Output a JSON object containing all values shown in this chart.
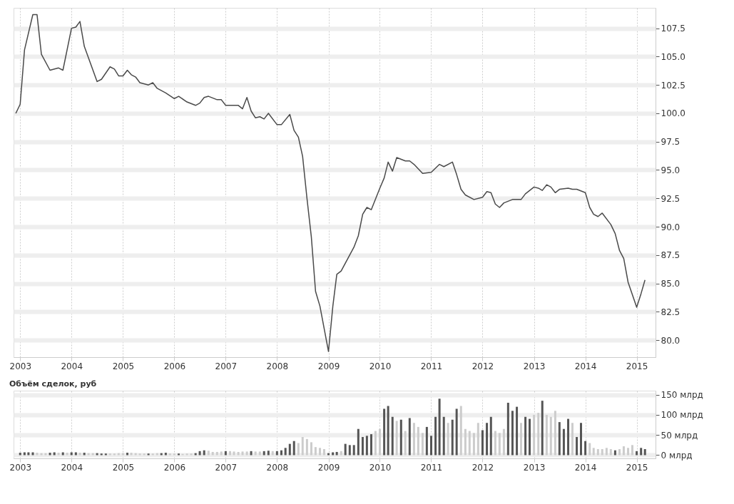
{
  "chart_data": [
    {
      "type": "line",
      "grid": true,
      "line_style": "solid",
      "marker": "none",
      "x": [
        "2002-12",
        "2003-01",
        "2003-02",
        "2003-04",
        "2003-05",
        "2003-06",
        "2003-08",
        "2003-10",
        "2003-11",
        "2004-01",
        "2004-02",
        "2004-03",
        "2004-04",
        "2004-07",
        "2004-08",
        "2004-10",
        "2004-11",
        "2004-12",
        "2005-01",
        "2005-02",
        "2005-03",
        "2005-04",
        "2005-05",
        "2005-07",
        "2005-08",
        "2005-09",
        "2005-11",
        "2006-01",
        "2006-02",
        "2006-04",
        "2006-06",
        "2006-07",
        "2006-08",
        "2006-09",
        "2006-11",
        "2006-12",
        "2007-01",
        "2007-04",
        "2007-05",
        "2007-06",
        "2007-07",
        "2007-08",
        "2007-09",
        "2007-10",
        "2007-11",
        "2008-01",
        "2008-02",
        "2008-04",
        "2008-05",
        "2008-06",
        "2008-07",
        "2008-08",
        "2008-09",
        "2008-10",
        "2008-11",
        "2009-01",
        "2009-02",
        "2009-03",
        "2009-04",
        "2009-07",
        "2009-08",
        "2009-09",
        "2009-10",
        "2009-11",
        "2010-01",
        "2010-02",
        "2010-03",
        "2010-04",
        "2010-05",
        "2010-07",
        "2010-08",
        "2010-09",
        "2010-11",
        "2011-01",
        "2011-03",
        "2011-04",
        "2011-06",
        "2011-07",
        "2011-08",
        "2011-09",
        "2011-11",
        "2012-01",
        "2012-02",
        "2012-03",
        "2012-04",
        "2012-05",
        "2012-06",
        "2012-08",
        "2012-10",
        "2012-11",
        "2013-01",
        "2013-02",
        "2013-03",
        "2013-04",
        "2013-05",
        "2013-06",
        "2013-07",
        "2013-09",
        "2013-10",
        "2013-11",
        "2014-01",
        "2014-02",
        "2014-03",
        "2014-04",
        "2014-05",
        "2014-07",
        "2014-08",
        "2014-09",
        "2014-10",
        "2014-11",
        "2015-01",
        "2015-02",
        "2015-03"
      ],
      "series": [
        {
          "color": "#4a4a4a",
          "values": [
            100.0,
            100.8,
            105.6,
            108.7,
            108.7,
            105.2,
            103.8,
            104.0,
            103.8,
            107.5,
            107.6,
            108.1,
            105.9,
            102.8,
            103.0,
            104.1,
            103.9,
            103.3,
            103.3,
            103.8,
            103.4,
            103.2,
            102.7,
            102.5,
            102.7,
            102.2,
            101.8,
            101.3,
            101.5,
            101.0,
            100.7,
            100.9,
            101.4,
            101.5,
            101.2,
            101.2,
            100.7,
            100.7,
            100.4,
            101.4,
            100.2,
            99.6,
            99.7,
            99.5,
            100.0,
            99.0,
            99.0,
            99.9,
            98.5,
            97.9,
            96.2,
            92.5,
            89.1,
            84.3,
            83.0,
            79.0,
            83.0,
            85.8,
            86.1,
            88.2,
            89.2,
            91.1,
            91.7,
            91.5,
            93.4,
            94.3,
            95.7,
            94.9,
            96.1,
            95.8,
            95.8,
            95.5,
            94.7,
            94.8,
            95.5,
            95.3,
            95.7,
            94.6,
            93.3,
            92.8,
            92.4,
            92.6,
            93.1,
            93.0,
            92.0,
            91.7,
            92.1,
            92.4,
            92.4,
            92.9,
            93.5,
            93.4,
            93.2,
            93.7,
            93.5,
            93.0,
            93.3,
            93.4,
            93.3,
            93.3,
            93.0,
            91.7,
            91.1,
            90.9,
            91.2,
            90.2,
            89.4,
            87.9,
            87.2,
            85.1,
            82.9,
            84.1,
            85.3
          ]
        }
      ],
      "xlim": [
        "2002-11-15",
        "2015-05-15"
      ],
      "xticks": [
        "2003",
        "2004",
        "2005",
        "2006",
        "2007",
        "2008",
        "2009",
        "2010",
        "2011",
        "2012",
        "2013",
        "2014",
        "2015"
      ],
      "ylim": [
        78.5,
        109.3
      ],
      "yticks": [
        {
          "value": 80,
          "label": "80.0"
        },
        {
          "value": 82.5,
          "label": "82.5"
        },
        {
          "value": 85,
          "label": "85.0"
        },
        {
          "value": 87.5,
          "label": "87.5"
        },
        {
          "value": 90,
          "label": "90.0"
        },
        {
          "value": 92.5,
          "label": "92.5"
        },
        {
          "value": 95,
          "label": "95.0"
        },
        {
          "value": 97.5,
          "label": "97.5"
        },
        {
          "value": 100,
          "label": "100.0"
        },
        {
          "value": 102.5,
          "label": "102.5"
        },
        {
          "value": 105,
          "label": "105.0"
        },
        {
          "value": 107.5,
          "label": "107.5"
        }
      ]
    },
    {
      "type": "bar",
      "title": "Объём сделок, руб",
      "grid": true,
      "x": [
        "2003-01",
        "2003-02",
        "2003-03",
        "2003-04",
        "2003-05",
        "2003-06",
        "2003-07",
        "2003-08",
        "2003-09",
        "2003-10",
        "2003-11",
        "2003-12",
        "2004-01",
        "2004-02",
        "2004-03",
        "2004-04",
        "2004-05",
        "2004-06",
        "2004-07",
        "2004-08",
        "2004-09",
        "2004-10",
        "2004-11",
        "2004-12",
        "2005-01",
        "2005-02",
        "2005-03",
        "2005-04",
        "2005-05",
        "2005-06",
        "2005-07",
        "2005-08",
        "2005-09",
        "2005-10",
        "2005-11",
        "2005-12",
        "2006-01",
        "2006-02",
        "2006-03",
        "2006-04",
        "2006-05",
        "2006-06",
        "2006-07",
        "2006-08",
        "2006-09",
        "2006-10",
        "2006-11",
        "2006-12",
        "2007-01",
        "2007-02",
        "2007-03",
        "2007-04",
        "2007-05",
        "2007-06",
        "2007-07",
        "2007-08",
        "2007-09",
        "2007-10",
        "2007-11",
        "2007-12",
        "2008-01",
        "2008-02",
        "2008-03",
        "2008-04",
        "2008-05",
        "2008-06",
        "2008-07",
        "2008-08",
        "2008-09",
        "2008-10",
        "2008-11",
        "2008-12",
        "2009-01",
        "2009-02",
        "2009-03",
        "2009-04",
        "2009-05",
        "2009-06",
        "2009-07",
        "2009-08",
        "2009-09",
        "2009-10",
        "2009-11",
        "2009-12",
        "2010-01",
        "2010-02",
        "2010-03",
        "2010-04",
        "2010-05",
        "2010-06",
        "2010-07",
        "2010-08",
        "2010-09",
        "2010-10",
        "2010-11",
        "2010-12",
        "2011-01",
        "2011-02",
        "2011-03",
        "2011-04",
        "2011-05",
        "2011-06",
        "2011-07",
        "2011-08",
        "2011-09",
        "2011-10",
        "2011-11",
        "2011-12",
        "2012-01",
        "2012-02",
        "2012-03",
        "2012-04",
        "2012-05",
        "2012-06",
        "2012-07",
        "2012-08",
        "2012-09",
        "2012-10",
        "2012-11",
        "2012-12",
        "2013-01",
        "2013-02",
        "2013-03",
        "2013-04",
        "2013-05",
        "2013-06",
        "2013-07",
        "2013-08",
        "2013-09",
        "2013-10",
        "2013-11",
        "2013-12",
        "2014-01",
        "2014-02",
        "2014-03",
        "2014-04",
        "2014-05",
        "2014-06",
        "2014-07",
        "2014-08",
        "2014-09",
        "2014-10",
        "2014-11",
        "2014-12",
        "2015-01",
        "2015-02",
        "2015-03"
      ],
      "values": [
        6,
        7,
        7,
        7,
        6,
        5,
        5,
        6,
        7,
        6,
        7,
        6,
        7,
        7,
        6,
        6,
        5,
        5,
        5,
        4,
        4,
        4,
        4,
        5,
        5,
        6,
        6,
        5,
        4,
        4,
        4,
        4,
        5,
        5,
        6,
        4,
        4,
        4,
        3,
        4,
        4,
        5,
        10,
        12,
        11,
        8,
        8,
        9,
        10,
        10,
        9,
        8,
        9,
        9,
        10,
        9,
        9,
        10,
        11,
        10,
        10,
        12,
        18,
        28,
        35,
        30,
        45,
        40,
        32,
        20,
        18,
        15,
        5,
        7,
        8,
        10,
        28,
        25,
        25,
        65,
        45,
        48,
        52,
        60,
        65,
        115,
        122,
        95,
        85,
        88,
        60,
        92,
        80,
        70,
        55,
        70,
        48,
        95,
        140,
        95,
        80,
        88,
        115,
        122,
        65,
        60,
        55,
        80,
        62,
        80,
        95,
        60,
        55,
        65,
        130,
        110,
        120,
        80,
        95,
        90,
        100,
        105,
        135,
        100,
        95,
        110,
        82,
        65,
        90,
        80,
        45,
        80,
        35,
        30,
        18,
        15,
        15,
        18,
        15,
        12,
        15,
        22,
        18,
        25,
        10,
        18,
        15
      ],
      "colors": [
        "#555555",
        "#555555",
        "#555555",
        "#555555",
        "#cccccc",
        "#cccccc",
        "#cccccc",
        "#555555",
        "#555555",
        "#cccccc",
        "#555555",
        "#cccccc",
        "#555555",
        "#555555",
        "#cccccc",
        "#555555",
        "#cccccc",
        "#cccccc",
        "#555555",
        "#555555",
        "#555555",
        "#cccccc",
        "#cccccc",
        "#cccccc",
        "#cccccc",
        "#555555",
        "#cccccc",
        "#cccccc",
        "#cccccc",
        "#cccccc",
        "#555555",
        "#cccccc",
        "#cccccc",
        "#555555",
        "#555555",
        "#cccccc",
        "#cccccc",
        "#555555",
        "#cccccc",
        "#cccccc",
        "#cccccc",
        "#555555",
        "#555555",
        "#555555",
        "#cccccc",
        "#cccccc",
        "#cccccc",
        "#cccccc",
        "#555555",
        "#cccccc",
        "#cccccc",
        "#cccccc",
        "#cccccc",
        "#cccccc",
        "#555555",
        "#cccccc",
        "#cccccc",
        "#555555",
        "#555555",
        "#cccccc",
        "#555555",
        "#555555",
        "#555555",
        "#555555",
        "#555555",
        "#cccccc",
        "#cccccc",
        "#cccccc",
        "#cccccc",
        "#cccccc",
        "#cccccc",
        "#cccccc",
        "#555555",
        "#555555",
        "#555555",
        "#cccccc",
        "#555555",
        "#555555",
        "#555555",
        "#555555",
        "#555555",
        "#555555",
        "#555555",
        "#cccccc",
        "#cccccc",
        "#555555",
        "#555555",
        "#555555",
        "#cccccc",
        "#555555",
        "#cccccc",
        "#555555",
        "#cccccc",
        "#cccccc",
        "#cccccc",
        "#555555",
        "#555555",
        "#555555",
        "#555555",
        "#555555",
        "#cccccc",
        "#555555",
        "#555555",
        "#cccccc",
        "#cccccc",
        "#cccccc",
        "#cccccc",
        "#cccccc",
        "#555555",
        "#555555",
        "#555555",
        "#cccccc",
        "#cccccc",
        "#cccccc",
        "#555555",
        "#555555",
        "#555555",
        "#cccccc",
        "#555555",
        "#555555",
        "#cccccc",
        "#cccccc",
        "#555555",
        "#cccccc",
        "#cccccc",
        "#cccccc",
        "#555555",
        "#555555",
        "#555555",
        "#cccccc",
        "#555555",
        "#555555",
        "#555555",
        "#cccccc",
        "#cccccc",
        "#cccccc",
        "#cccccc",
        "#cccccc",
        "#cccccc",
        "#555555",
        "#cccccc",
        "#cccccc",
        "#cccccc",
        "#cccccc",
        "#555555",
        "#555555",
        "#555555"
      ],
      "xlim": [
        "2002-11-15",
        "2015-05-15"
      ],
      "xticks": [
        "2003",
        "2004",
        "2005",
        "2006",
        "2007",
        "2008",
        "2009",
        "2010",
        "2011",
        "2012",
        "2013",
        "2014",
        "2015"
      ],
      "ylim": [
        -8,
        160
      ],
      "yticks": [
        {
          "value": 0,
          "label": "0 млрд"
        },
        {
          "value": 50,
          "label": "50 млрд"
        },
        {
          "value": 100,
          "label": "100 млрд"
        },
        {
          "value": 150,
          "label": "150 млрд"
        }
      ]
    }
  ]
}
